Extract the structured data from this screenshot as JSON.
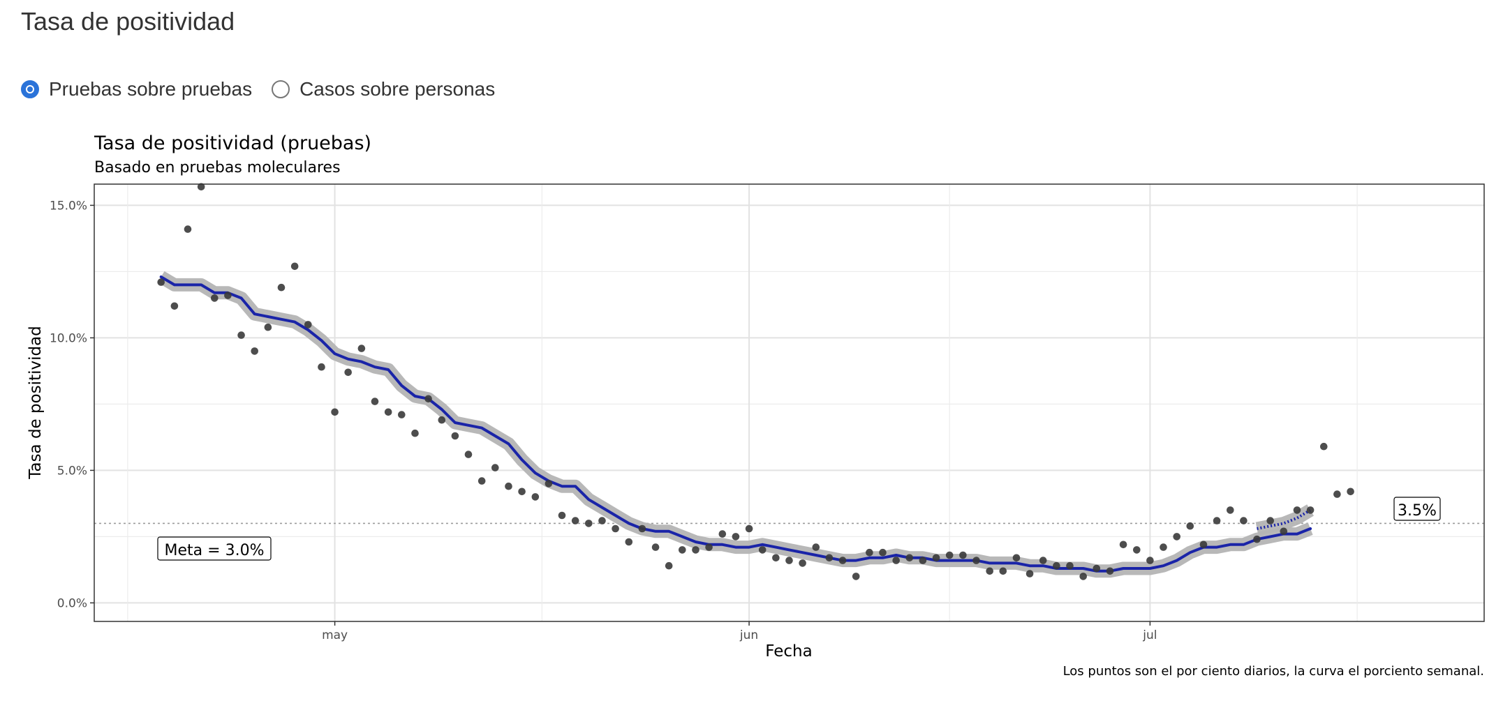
{
  "page": {
    "title": "Tasa de positividad"
  },
  "radio": {
    "options": [
      {
        "label": "Pruebas sobre pruebas",
        "checked": true
      },
      {
        "label": "Casos sobre personas",
        "checked": false
      }
    ]
  },
  "colors": {
    "line": "#1a24a8",
    "ribbon": "#b4b4b4",
    "points": "#3a3a3a",
    "radio_accent": "#2a73d9"
  },
  "chart_data": {
    "type": "scatter",
    "title": "Tasa de positividad (pruebas)",
    "subtitle": "Basado en pruebas moleculares",
    "xlabel": "Fecha",
    "ylabel": "Tasa de positividad",
    "caption": "Los puntos son el por ciento diarios, la curva el porciento semanal.",
    "xlim": [
      "2020-04-13",
      "2020-07-26"
    ],
    "ylim": [
      -0.7,
      15.8
    ],
    "x_ticks": [
      {
        "date": "2020-05-01",
        "label": "may"
      },
      {
        "date": "2020-06-01",
        "label": "jun"
      },
      {
        "date": "2020-07-01",
        "label": "jul"
      }
    ],
    "y_ticks": [
      {
        "value": 0,
        "label": "0.0%"
      },
      {
        "value": 5,
        "label": "5.0%"
      },
      {
        "value": 10,
        "label": "10.0%"
      },
      {
        "value": 15,
        "label": "15.0%"
      }
    ],
    "grid": true,
    "goal_line": {
      "value": 3.0,
      "label": "Meta = 3.0%"
    },
    "end_label": "3.5%",
    "series": [
      {
        "kind": "points",
        "x_start": "2020-04-18",
        "y": [
          12.1,
          11.2,
          14.1,
          15.7,
          11.5,
          11.6,
          10.1,
          9.5,
          10.4,
          11.9,
          12.7,
          10.5,
          8.9,
          7.2,
          8.7,
          9.6,
          7.6,
          7.2,
          7.1,
          6.4,
          7.7,
          6.9,
          6.3,
          5.6,
          4.6,
          5.1,
          4.4,
          4.2,
          4.0,
          4.5,
          3.3,
          3.1,
          3.0,
          3.1,
          2.8,
          2.3,
          2.8,
          2.1,
          1.4,
          2.0,
          2.0,
          2.1,
          2.6,
          2.5,
          2.8,
          2.0,
          1.7,
          1.6,
          1.5,
          2.1,
          1.7,
          1.6,
          1.0,
          1.9,
          1.9,
          1.6,
          1.7,
          1.6,
          1.7,
          1.8,
          1.8,
          1.6,
          1.2,
          1.2,
          1.7,
          1.1,
          1.6,
          1.4,
          1.4,
          1.0,
          1.3,
          1.2,
          2.2,
          2.0,
          1.6,
          2.1,
          2.5,
          2.9,
          2.2,
          3.1,
          3.5,
          3.1,
          2.4,
          3.1,
          2.7,
          3.5,
          3.5,
          5.9,
          4.1,
          4.2
        ]
      },
      {
        "kind": "line",
        "x_start": "2020-04-18",
        "y": [
          12.3,
          12.0,
          12.0,
          12.0,
          11.7,
          11.7,
          11.5,
          10.9,
          10.8,
          10.7,
          10.6,
          10.3,
          9.9,
          9.4,
          9.2,
          9.1,
          8.9,
          8.8,
          8.2,
          7.8,
          7.7,
          7.3,
          6.8,
          6.7,
          6.6,
          6.3,
          6.0,
          5.4,
          4.9,
          4.6,
          4.4,
          4.4,
          3.9,
          3.6,
          3.3,
          3.0,
          2.8,
          2.7,
          2.7,
          2.5,
          2.3,
          2.2,
          2.2,
          2.1,
          2.1,
          2.2,
          2.1,
          2.0,
          1.9,
          1.8,
          1.7,
          1.6,
          1.6,
          1.7,
          1.7,
          1.8,
          1.7,
          1.7,
          1.6,
          1.6,
          1.6,
          1.6,
          1.5,
          1.5,
          1.5,
          1.4,
          1.4,
          1.3,
          1.3,
          1.3,
          1.2,
          1.2,
          1.3,
          1.3,
          1.3,
          1.4,
          1.6,
          1.9,
          2.1,
          2.1,
          2.2,
          2.2,
          2.4,
          2.5,
          2.6,
          2.6,
          2.8
        ]
      },
      {
        "kind": "dotted-line",
        "x_start": "2020-07-09",
        "y": [
          2.8,
          2.9,
          3.0,
          3.2,
          3.5
        ]
      }
    ]
  }
}
